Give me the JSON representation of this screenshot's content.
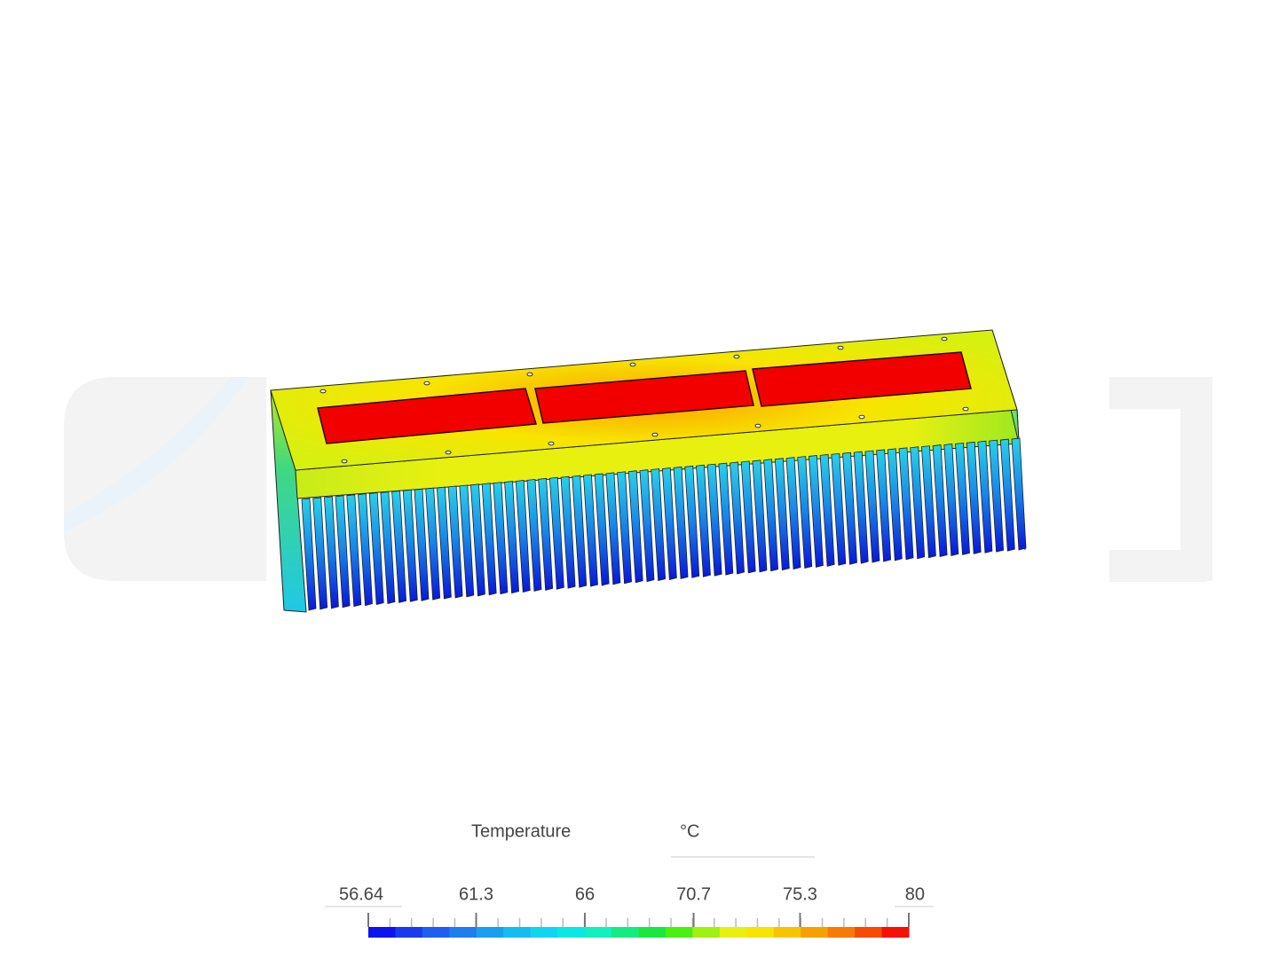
{
  "legend": {
    "title": "Temperature",
    "unit": "°C",
    "ticks": [
      56.64,
      61.3,
      66,
      70.7,
      75.3,
      80
    ],
    "colors": [
      "#0a14f0",
      "#1a3af0",
      "#1e5ef0",
      "#1e7ef0",
      "#1a9ff0",
      "#14bdf0",
      "#0ed6f0",
      "#0ae8e6",
      "#10f0c0",
      "#12ec80",
      "#1ae840",
      "#4af010",
      "#a0f010",
      "#e8f010",
      "#f8e400",
      "#f8c400",
      "#f8a000",
      "#f87a00",
      "#f84a00",
      "#f81000"
    ]
  }
}
